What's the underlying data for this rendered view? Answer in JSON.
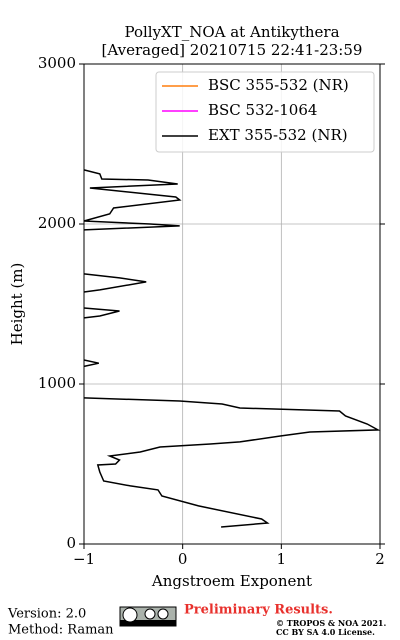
{
  "chart_data": {
    "type": "line",
    "title": "PollyXT_NOA at Antikythera",
    "subtitle": "[Averaged] 20210715 22:41-23:59",
    "x_label": "Angstroem Exponent",
    "y_label": "Height (m)",
    "xlim": [
      -1,
      2
    ],
    "xticks": [
      {
        "value": -1,
        "label": "−1"
      },
      0,
      1,
      2
    ],
    "ylim": [
      0,
      3000
    ],
    "yticks": [
      0,
      1000,
      2000,
      3000
    ],
    "grid": true,
    "legend": "upper right",
    "series": [
      {
        "name": "BSC 355-532 (NR)",
        "color": "#ff7f0e",
        "x": [],
        "y": []
      },
      {
        "name": "BSC 532-1064",
        "color": "#ff00ff",
        "x": [],
        "y": []
      },
      {
        "name": "EXT 355-532 (NR)",
        "color": "#000000",
        "x": [
          0.39,
          0.86,
          0.8,
          0.16,
          -0.21,
          -0.25,
          -0.53,
          -0.8,
          -0.84,
          -0.86,
          -0.68,
          -0.64,
          -0.74,
          -0.43,
          -0.23,
          0.28,
          0.58,
          0.99,
          1.29,
          1.98,
          1.87,
          1.65,
          1.59,
          0.58,
          0.4,
          -0.03,
          -1,
          null,
          -1,
          -0.85,
          -1,
          null,
          -1,
          -0.84,
          -0.64,
          -1,
          null,
          -1,
          -0.84,
          -0.37,
          -0.64,
          -1,
          null,
          -1,
          -0.03,
          -0.33,
          -1,
          -0.74,
          -0.7,
          -0.03,
          -0.07,
          -0.94,
          -0.05,
          -0.35,
          -0.82,
          -0.84,
          -1
        ],
        "y": [
          106,
          131,
          156,
          238,
          300,
          338,
          363,
          394,
          450,
          494,
          500,
          525,
          550,
          575,
          606,
          625,
          638,
          675,
          700,
          713,
          750,
          800,
          831,
          850,
          875,
          894,
          913,
          null,
          1150,
          1130,
          1110,
          null,
          1413,
          1425,
          1456,
          1475,
          null,
          1575,
          1588,
          1638,
          1663,
          1688,
          null,
          1963,
          1988,
          2000,
          2019,
          2063,
          2100,
          2150,
          2169,
          2225,
          2250,
          2275,
          2281,
          2313,
          2338
        ]
      }
    ],
    "footer": {
      "version": "Version: 2.0",
      "method": "Method: Raman",
      "note": "Preliminary Results.",
      "copyright": "© TROPOS & NOA 2021.",
      "license": "CC BY SA 4.0 License."
    }
  }
}
